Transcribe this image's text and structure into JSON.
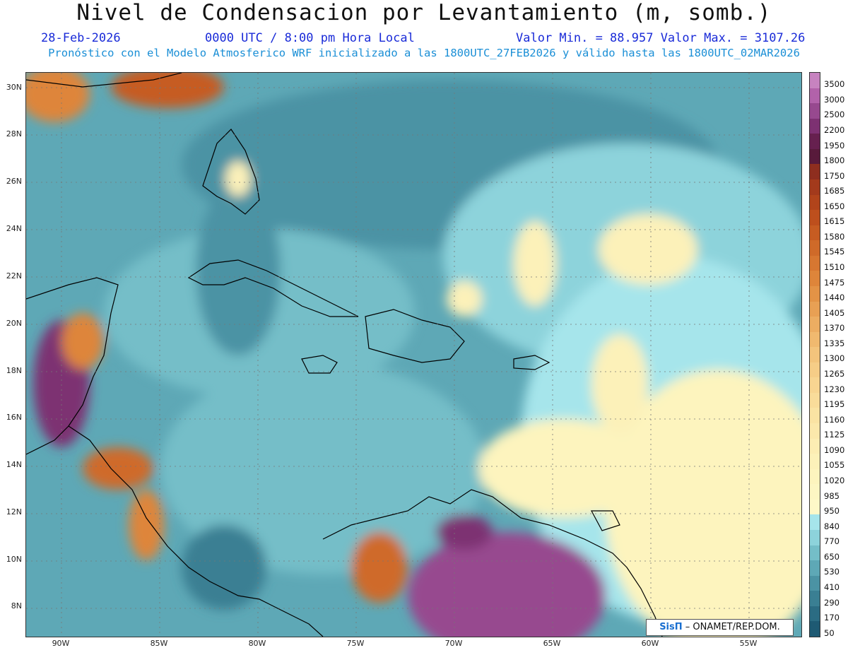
{
  "header": {
    "title": "Nivel de Condensacion por Levantamiento (m, somb.)",
    "date": "28-Feb-2026",
    "time": "0000 UTC / 8:00 pm Hora Local",
    "minmax": "Valor Min. = 88.957  Valor Max. = 3107.26",
    "forecast": "Pronóstico con el Modelo Atmosferico WRF inicializado a las 1800UTC_27FEB2026 y válido hasta las  1800UTC_02MAR2026"
  },
  "map": {
    "lat_labels": [
      "30N",
      "28N",
      "26N",
      "24N",
      "22N",
      "20N",
      "18N",
      "16N",
      "14N",
      "12N",
      "10N",
      "8N"
    ],
    "lon_labels": [
      "90W",
      "85W",
      "80W",
      "75W",
      "70W",
      "65W",
      "60W",
      "55W"
    ]
  },
  "colorbar": {
    "labels": [
      "3500",
      "3000",
      "2500",
      "2200",
      "1950",
      "1800",
      "1750",
      "1685",
      "1650",
      "1615",
      "1580",
      "1545",
      "1510",
      "1475",
      "1440",
      "1405",
      "1370",
      "1335",
      "1300",
      "1265",
      "1230",
      "1195",
      "1160",
      "1125",
      "1090",
      "1055",
      "1020",
      "985",
      "950",
      "840",
      "770",
      "650",
      "530",
      "410",
      "290",
      "170",
      "50"
    ],
    "colors": [
      "#c783c0",
      "#b262aa",
      "#97498f",
      "#7d3172",
      "#66204f",
      "#581a3b",
      "#8e2e1f",
      "#a33a1c",
      "#b1441b",
      "#bd4f1d",
      "#c65c22",
      "#cf6a29",
      "#d77731",
      "#de853a",
      "#e39346",
      "#e8a054",
      "#ecad62",
      "#f0b96f",
      "#f3c47c",
      "#f6cd87",
      "#f8d591",
      "#f9dc9a",
      "#fae3a3",
      "#fbe8ab",
      "#fcedb3",
      "#fcf1b9",
      "#fdf4be",
      "#fdf6c3",
      "#fef8c8",
      "#a6e5eb",
      "#8dd3db",
      "#74bec8",
      "#5ea8b6",
      "#4b93a4",
      "#3a7f93",
      "#2b6c83",
      "#1e5a73"
    ]
  },
  "credit": {
    "sis": "SisΠ",
    "org": "– ONAMET/REP.DOM."
  }
}
